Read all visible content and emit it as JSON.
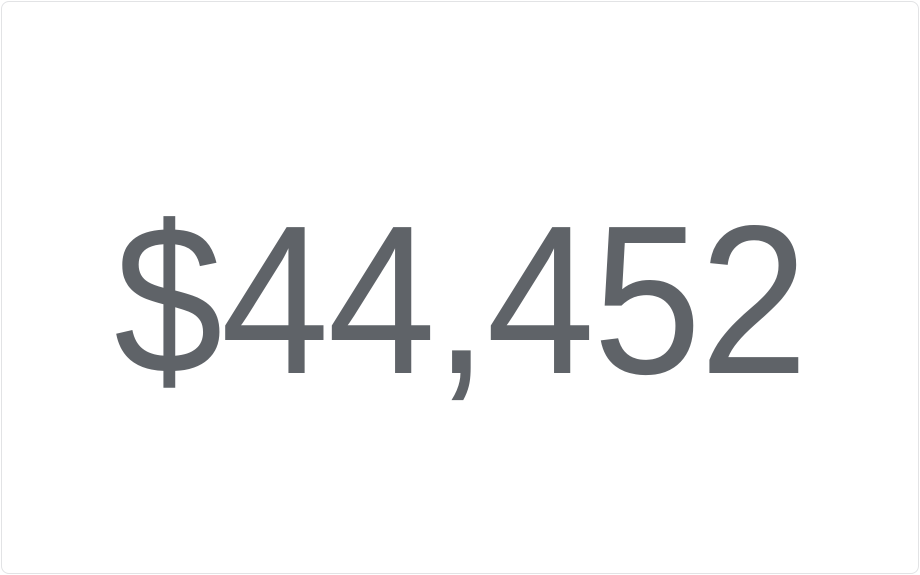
{
  "metric": {
    "value": "$44,452"
  },
  "colors": {
    "value_text": "#5f6368",
    "card_border": "#e2e3e5",
    "card_background": "#ffffff"
  }
}
